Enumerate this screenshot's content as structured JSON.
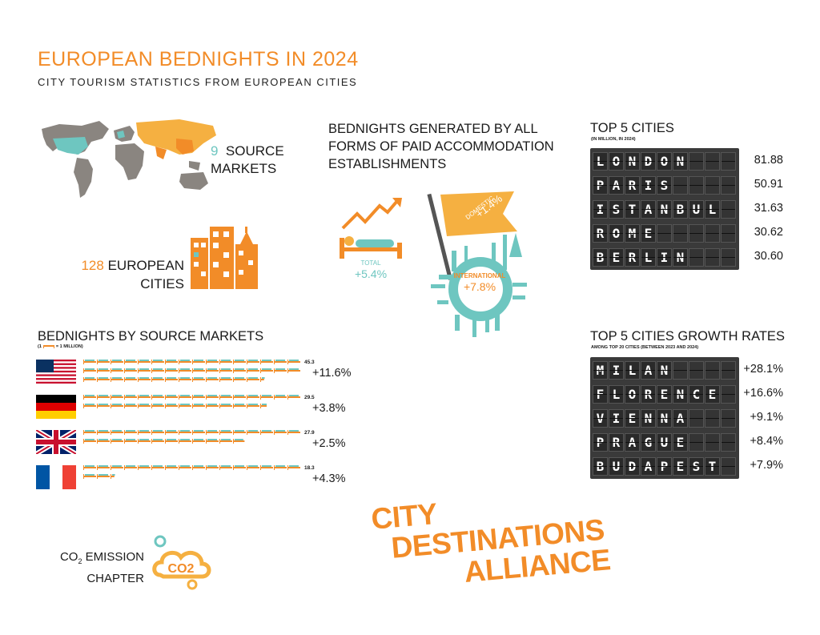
{
  "header": {
    "title": "EUROPEAN BEDNIGHTS IN 2024",
    "subtitle": "CITY TOURISM STATISTICS FROM EUROPEAN CITIES"
  },
  "source_markets": {
    "count": "9",
    "label_line1": "SOURCE",
    "label_line2": "MARKETS"
  },
  "european_cities": {
    "count": "128",
    "label_line1": "EUROPEAN",
    "label_line2": "CITIES"
  },
  "bednights_generated": {
    "heading_lines": [
      "BEDNIGHTS GENERATED BY ALL",
      "FORMS OF PAID ACCOMMODATION",
      "ESTABLISHMENTS"
    ],
    "total_label": "TOTAL",
    "total_value": "+5.4%",
    "domestic_label": "DOMESTIC",
    "domestic_value": "+1.4%",
    "international_label": "INTERNATIONAL",
    "international_value": "+7.8%"
  },
  "top5_cities": {
    "heading": "TOP 5 CITIES",
    "subheading": "(IN MILLION, IN 2024)",
    "rows": [
      {
        "city": "LONDON",
        "value": "81.88"
      },
      {
        "city": "PARIS",
        "value": "50.91"
      },
      {
        "city": "ISTANBUL",
        "value": "31.63"
      },
      {
        "city": "ROME",
        "value": "30.62"
      },
      {
        "city": "BERLIN",
        "value": "30.60"
      }
    ]
  },
  "top5_growth": {
    "heading": "TOP 5 CITIES GROWTH RATES",
    "subheading": "AMONG TOP 20 CITIES (BETWEEN 2023 AND 2024)",
    "rows": [
      {
        "city": "MILAN",
        "value": "+28.1%"
      },
      {
        "city": "FLORENCE",
        "value": "+16.6%"
      },
      {
        "city": "VIENNA",
        "value": "+9.1%"
      },
      {
        "city": "PRAGUE",
        "value": "+8.4%"
      },
      {
        "city": "BUDAPEST",
        "value": "+7.9%"
      }
    ]
  },
  "source_market_chart": {
    "heading": "BEDNIGHTS BY SOURCE MARKETS",
    "legend_prefix": "(1",
    "legend_suffix": "= 1 MILLION)"
  },
  "co2": {
    "line1": "CO",
    "sub": "2",
    "line1_rest": " EMISSION",
    "line2": "CHAPTER",
    "badge": "CO2"
  },
  "brand": {
    "line1": "CITY",
    "line2": "DESTINATIONS",
    "line3": "ALLIANCE"
  },
  "colors": {
    "accent": "#f28c28",
    "teal": "#6ec6c0",
    "grey": "#8a8580",
    "board": "#3a3a3a"
  },
  "chart_data": {
    "type": "bar",
    "title": "BEDNIGHTS BY SOURCE MARKETS",
    "unit": "1 icon = 1 million bednights",
    "categories": [
      "United States",
      "Germany",
      "United Kingdom",
      "France"
    ],
    "series": [
      {
        "name": "Bednights (million)",
        "values": [
          45.3,
          29.5,
          27.9,
          18.3
        ]
      },
      {
        "name": "Growth",
        "values": [
          "+11.6%",
          "+3.8%",
          "+2.5%",
          "+4.3%"
        ]
      }
    ],
    "flags": [
      "us-flag",
      "germany-flag",
      "uk-flag",
      "france-flag"
    ]
  }
}
